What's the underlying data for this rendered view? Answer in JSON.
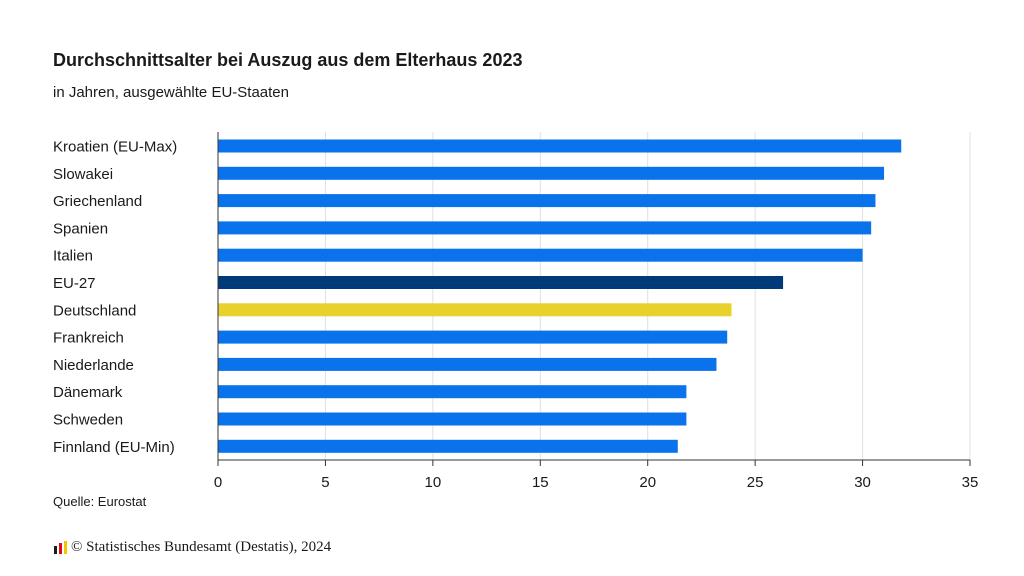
{
  "chart_data": {
    "type": "bar",
    "orientation": "horizontal",
    "title": "Durchschnittsalter bei Auszug aus dem Elterhaus 2023",
    "subtitle": "in Jahren, ausgewählte EU-Staaten",
    "categories": [
      "Kroatien (EU-Max)",
      "Slowakei",
      "Griechenland",
      "Spanien",
      "Italien",
      "EU-27",
      "Deutschland",
      "Frankreich",
      "Niederlande",
      "Dänemark",
      "Schweden",
      "Finnland (EU-Min)"
    ],
    "values": [
      31.8,
      31.0,
      30.6,
      30.4,
      30.0,
      26.3,
      23.9,
      23.7,
      23.2,
      21.8,
      21.8,
      21.4
    ],
    "bar_colors": [
      "#0a73eb",
      "#0a73eb",
      "#0a73eb",
      "#0a73eb",
      "#0a73eb",
      "#003a78",
      "#e8d12a",
      "#0a73eb",
      "#0a73eb",
      "#0a73eb",
      "#0a73eb",
      "#0a73eb"
    ],
    "xlim": [
      0,
      35
    ],
    "xticks": [
      0,
      5,
      10,
      15,
      20,
      25,
      30,
      35
    ],
    "grid": true
  },
  "source": "Quelle: Eurostat",
  "copyright": "© Statistisches Bundesamt (Destatis), 2024",
  "colors": {
    "highlight": "#e8d12a",
    "eu": "#003a78",
    "default": "#0a73eb",
    "gridline": "#e0e0e0",
    "axis": "#333333"
  }
}
